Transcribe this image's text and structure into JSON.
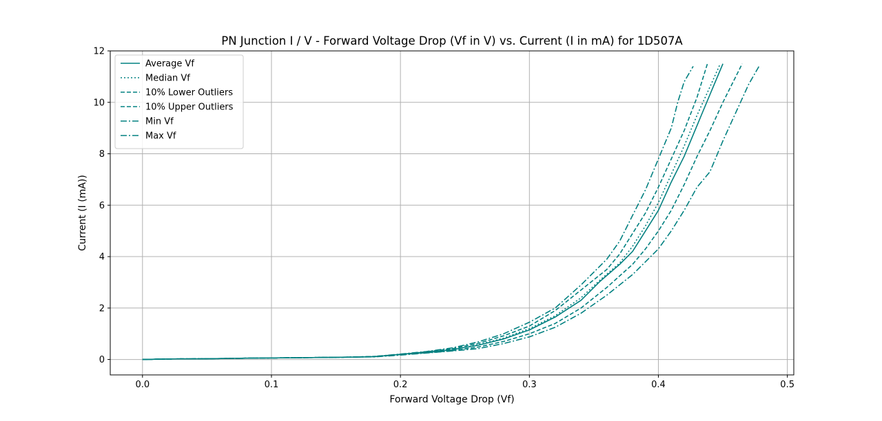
{
  "chart_data": {
    "type": "line",
    "title": "PN Junction I / V - Forward Voltage Drop (Vf in V) vs. Current (I in mA) for 1D507A",
    "xlabel": "Forward Voltage Drop (Vf)",
    "ylabel": "Current (I (mA))",
    "xlim": [
      -0.025,
      0.505
    ],
    "ylim": [
      -0.6,
      12
    ],
    "xticks": [
      0.0,
      0.1,
      0.2,
      0.3,
      0.4,
      0.5
    ],
    "xtick_labels": [
      "0.0",
      "0.1",
      "0.2",
      "0.3",
      "0.4",
      "0.5"
    ],
    "yticks": [
      0,
      2,
      4,
      6,
      8,
      10,
      12
    ],
    "ytick_labels": [
      "0",
      "2",
      "4",
      "6",
      "8",
      "10",
      "12"
    ],
    "grid": true,
    "legend_position": "top-left",
    "color": "#008080",
    "series": [
      {
        "name": "Average Vf",
        "style": "solid",
        "points": [
          [
            0.0,
            0.0
          ],
          [
            0.02,
            0.02
          ],
          [
            0.05,
            0.03
          ],
          [
            0.08,
            0.05
          ],
          [
            0.12,
            0.07
          ],
          [
            0.16,
            0.09
          ],
          [
            0.18,
            0.11
          ],
          [
            0.2,
            0.2
          ],
          [
            0.22,
            0.28
          ],
          [
            0.24,
            0.38
          ],
          [
            0.26,
            0.55
          ],
          [
            0.28,
            0.8
          ],
          [
            0.3,
            1.15
          ],
          [
            0.32,
            1.65
          ],
          [
            0.34,
            2.3
          ],
          [
            0.355,
            3.05
          ],
          [
            0.37,
            3.7
          ],
          [
            0.38,
            4.2
          ],
          [
            0.39,
            5.0
          ],
          [
            0.4,
            5.8
          ],
          [
            0.41,
            6.9
          ],
          [
            0.42,
            7.9
          ],
          [
            0.43,
            9.1
          ],
          [
            0.44,
            10.3
          ],
          [
            0.45,
            11.5
          ]
        ]
      },
      {
        "name": "Median Vf",
        "style": "dotted",
        "points": [
          [
            0.0,
            0.0
          ],
          [
            0.02,
            0.02
          ],
          [
            0.05,
            0.03
          ],
          [
            0.08,
            0.05
          ],
          [
            0.12,
            0.07
          ],
          [
            0.16,
            0.09
          ],
          [
            0.18,
            0.11
          ],
          [
            0.2,
            0.2
          ],
          [
            0.22,
            0.28
          ],
          [
            0.24,
            0.38
          ],
          [
            0.26,
            0.57
          ],
          [
            0.28,
            0.83
          ],
          [
            0.3,
            1.2
          ],
          [
            0.32,
            1.7
          ],
          [
            0.34,
            2.4
          ],
          [
            0.355,
            3.1
          ],
          [
            0.37,
            3.75
          ],
          [
            0.38,
            4.4
          ],
          [
            0.39,
            5.2
          ],
          [
            0.4,
            6.1
          ],
          [
            0.41,
            7.2
          ],
          [
            0.42,
            8.3
          ],
          [
            0.43,
            9.5
          ],
          [
            0.44,
            10.6
          ],
          [
            0.448,
            11.5
          ]
        ]
      },
      {
        "name": "10% Lower Outliers",
        "style": "dashed",
        "points": [
          [
            0.0,
            0.0
          ],
          [
            0.02,
            0.02
          ],
          [
            0.05,
            0.03
          ],
          [
            0.08,
            0.05
          ],
          [
            0.12,
            0.07
          ],
          [
            0.16,
            0.09
          ],
          [
            0.18,
            0.11
          ],
          [
            0.2,
            0.19
          ],
          [
            0.22,
            0.26
          ],
          [
            0.24,
            0.34
          ],
          [
            0.26,
            0.48
          ],
          [
            0.28,
            0.7
          ],
          [
            0.3,
            1.0
          ],
          [
            0.32,
            1.4
          ],
          [
            0.34,
            2.0
          ],
          [
            0.36,
            2.8
          ],
          [
            0.38,
            3.7
          ],
          [
            0.39,
            4.3
          ],
          [
            0.4,
            5.0
          ],
          [
            0.41,
            5.8
          ],
          [
            0.42,
            6.8
          ],
          [
            0.43,
            7.9
          ],
          [
            0.44,
            8.9
          ],
          [
            0.45,
            10.0
          ],
          [
            0.46,
            11.0
          ],
          [
            0.465,
            11.5
          ]
        ]
      },
      {
        "name": "10% Upper Outliers",
        "style": "dashed",
        "points": [
          [
            0.0,
            0.0
          ],
          [
            0.02,
            0.02
          ],
          [
            0.05,
            0.03
          ],
          [
            0.08,
            0.05
          ],
          [
            0.12,
            0.07
          ],
          [
            0.16,
            0.09
          ],
          [
            0.18,
            0.12
          ],
          [
            0.2,
            0.2
          ],
          [
            0.22,
            0.3
          ],
          [
            0.24,
            0.42
          ],
          [
            0.26,
            0.62
          ],
          [
            0.28,
            0.92
          ],
          [
            0.3,
            1.3
          ],
          [
            0.32,
            1.9
          ],
          [
            0.34,
            2.7
          ],
          [
            0.36,
            3.5
          ],
          [
            0.37,
            4.1
          ],
          [
            0.38,
            4.9
          ],
          [
            0.39,
            5.7
          ],
          [
            0.4,
            6.7
          ],
          [
            0.41,
            7.8
          ],
          [
            0.42,
            8.9
          ],
          [
            0.43,
            10.2
          ],
          [
            0.438,
            11.5
          ]
        ]
      },
      {
        "name": "Min Vf",
        "style": "dashdot",
        "points": [
          [
            0.0,
            0.0
          ],
          [
            0.02,
            0.02
          ],
          [
            0.05,
            0.03
          ],
          [
            0.08,
            0.05
          ],
          [
            0.12,
            0.07
          ],
          [
            0.16,
            0.09
          ],
          [
            0.18,
            0.1
          ],
          [
            0.2,
            0.17
          ],
          [
            0.22,
            0.25
          ],
          [
            0.24,
            0.33
          ],
          [
            0.26,
            0.42
          ],
          [
            0.28,
            0.62
          ],
          [
            0.3,
            0.88
          ],
          [
            0.32,
            1.25
          ],
          [
            0.34,
            1.8
          ],
          [
            0.36,
            2.5
          ],
          [
            0.38,
            3.3
          ],
          [
            0.4,
            4.3
          ],
          [
            0.41,
            5.0
          ],
          [
            0.42,
            5.8
          ],
          [
            0.43,
            6.7
          ],
          [
            0.44,
            7.3
          ],
          [
            0.45,
            8.5
          ],
          [
            0.46,
            9.6
          ],
          [
            0.47,
            10.7
          ],
          [
            0.478,
            11.4
          ]
        ]
      },
      {
        "name": "Max Vf",
        "style": "dashdot",
        "points": [
          [
            0.0,
            0.0
          ],
          [
            0.02,
            0.02
          ],
          [
            0.05,
            0.03
          ],
          [
            0.08,
            0.05
          ],
          [
            0.12,
            0.07
          ],
          [
            0.16,
            0.09
          ],
          [
            0.18,
            0.12
          ],
          [
            0.2,
            0.21
          ],
          [
            0.22,
            0.31
          ],
          [
            0.24,
            0.45
          ],
          [
            0.26,
            0.68
          ],
          [
            0.28,
            1.0
          ],
          [
            0.3,
            1.45
          ],
          [
            0.32,
            2.0
          ],
          [
            0.34,
            2.9
          ],
          [
            0.36,
            3.9
          ],
          [
            0.37,
            4.6
          ],
          [
            0.38,
            5.6
          ],
          [
            0.39,
            6.6
          ],
          [
            0.4,
            7.8
          ],
          [
            0.41,
            9.0
          ],
          [
            0.415,
            10.0
          ],
          [
            0.42,
            10.8
          ],
          [
            0.427,
            11.4
          ]
        ]
      }
    ]
  }
}
